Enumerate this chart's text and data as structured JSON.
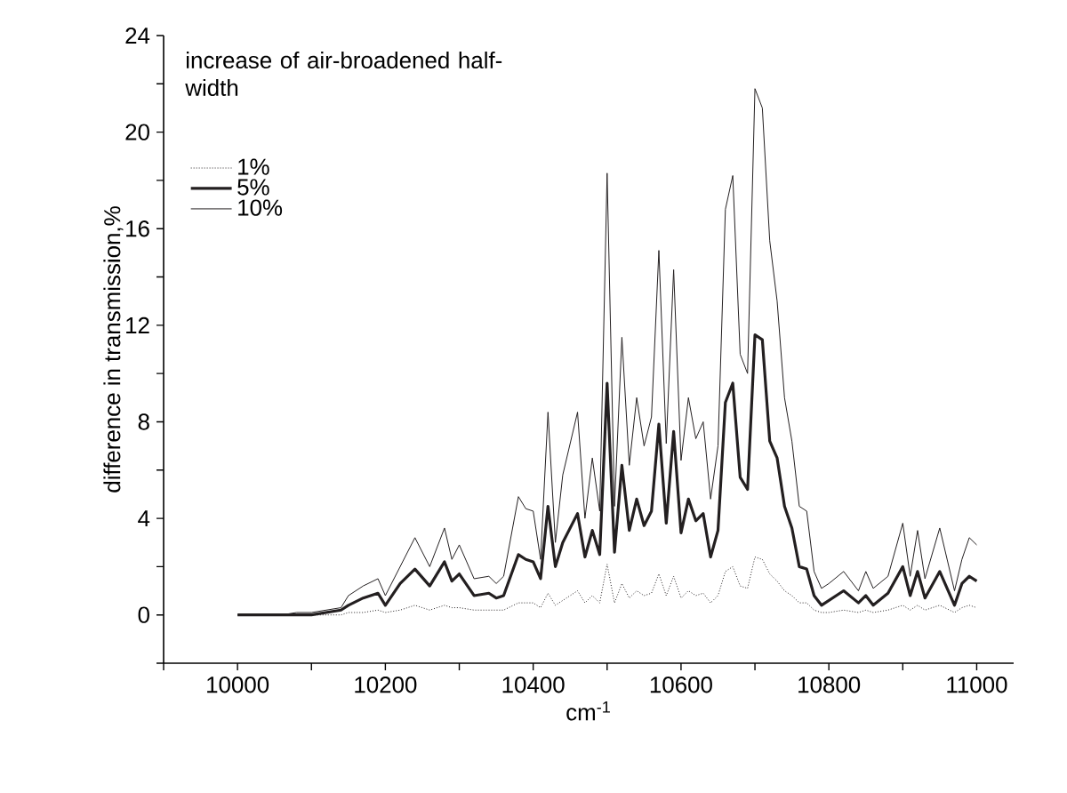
{
  "chart_data": {
    "type": "line",
    "xlabel": "cm$^{-1}$",
    "ylabel": "difference in transmission,%",
    "legend_title": "increase of air-broadened half-width",
    "legend": "top left",
    "grid": false,
    "marker": "none",
    "xlim": [
      9900,
      11050
    ],
    "ylim": [
      -2,
      24
    ],
    "xticks": [
      {
        "value": 9900,
        "label": null
      },
      10000,
      {
        "value": 10100,
        "label": null
      },
      10200,
      {
        "value": 10300,
        "label": null
      },
      10400,
      {
        "value": 10500,
        "label": null
      },
      10600,
      {
        "value": 10700,
        "label": null
      },
      10800,
      {
        "value": 10900,
        "label": null
      },
      11000
    ],
    "yticks": [
      {
        "value": -2,
        "label": null
      },
      0,
      {
        "value": 2,
        "label": null
      },
      4,
      {
        "value": 6,
        "label": null
      },
      8,
      {
        "value": 10,
        "label": null
      },
      12,
      {
        "value": 14,
        "label": null
      },
      16,
      {
        "value": 18,
        "label": null
      },
      20,
      {
        "value": 22,
        "label": null
      },
      24
    ],
    "x": [
      10000,
      10020,
      10040,
      10060,
      10080,
      10100,
      10120,
      10140,
      10150,
      10170,
      10190,
      10200,
      10220,
      10240,
      10260,
      10280,
      10290,
      10300,
      10320,
      10340,
      10350,
      10360,
      10380,
      10390,
      10400,
      10410,
      10420,
      10430,
      10440,
      10460,
      10470,
      10480,
      10490,
      10500,
      10510,
      10520,
      10530,
      10540,
      10550,
      10560,
      10570,
      10580,
      10590,
      10600,
      10610,
      10620,
      10630,
      10640,
      10650,
      10660,
      10670,
      10680,
      10690,
      10700,
      10710,
      10720,
      10730,
      10740,
      10750,
      10760,
      10770,
      10780,
      10790,
      10800,
      10820,
      10840,
      10850,
      10860,
      10880,
      10900,
      10910,
      10920,
      10930,
      10950,
      10970,
      10980,
      10990,
      11000
    ],
    "series": [
      {
        "name": "1%",
        "color": "#231f20",
        "line_style": "dotted",
        "values": [
          0,
          0,
          0,
          0,
          0,
          0,
          0,
          0,
          0.1,
          0.1,
          0.2,
          0.1,
          0.2,
          0.4,
          0.2,
          0.4,
          0.3,
          0.3,
          0.2,
          0.2,
          0.2,
          0.2,
          0.5,
          0.5,
          0.5,
          0.3,
          0.9,
          0.4,
          0.6,
          1.0,
          0.5,
          0.8,
          0.5,
          2.1,
          0.5,
          1.3,
          0.7,
          1.0,
          0.8,
          0.9,
          1.7,
          0.8,
          1.6,
          0.7,
          1.0,
          0.8,
          0.9,
          0.5,
          0.8,
          1.8,
          2.0,
          1.2,
          1.1,
          2.4,
          2.3,
          1.7,
          1.4,
          1.0,
          0.8,
          0.5,
          0.5,
          0.2,
          0.1,
          0.1,
          0.2,
          0.1,
          0.2,
          0.1,
          0.2,
          0.4,
          0.2,
          0.4,
          0.2,
          0.4,
          0.1,
          0.3,
          0.4,
          0.3
        ]
      },
      {
        "name": "5%",
        "color": "#231f20",
        "line_style": "solid",
        "values": [
          0,
          0,
          0,
          0,
          0,
          0,
          0.1,
          0.2,
          0.4,
          0.7,
          0.9,
          0.4,
          1.3,
          1.9,
          1.2,
          2.2,
          1.4,
          1.7,
          0.8,
          0.9,
          0.7,
          0.8,
          2.5,
          2.3,
          2.2,
          1.5,
          4.5,
          2.0,
          3.0,
          4.2,
          2.4,
          3.5,
          2.5,
          9.6,
          2.6,
          6.2,
          3.5,
          4.8,
          3.7,
          4.3,
          7.9,
          3.8,
          7.6,
          3.4,
          4.8,
          3.9,
          4.2,
          2.4,
          3.5,
          8.8,
          9.6,
          5.7,
          5.2,
          11.6,
          11.4,
          7.2,
          6.5,
          4.5,
          3.6,
          2.0,
          1.9,
          0.8,
          0.4,
          0.6,
          1.0,
          0.5,
          0.8,
          0.4,
          0.9,
          2.0,
          0.8,
          1.8,
          0.7,
          1.8,
          0.4,
          1.3,
          1.6,
          1.4
        ]
      },
      {
        "name": "10%",
        "color": "#231f20",
        "line_style": "solid",
        "values": [
          0,
          0,
          0,
          0,
          0.1,
          0.1,
          0.2,
          0.3,
          0.8,
          1.2,
          1.5,
          0.8,
          2.0,
          3.2,
          2.0,
          3.6,
          2.3,
          2.9,
          1.5,
          1.6,
          1.3,
          1.6,
          4.9,
          4.4,
          4.3,
          2.3,
          8.4,
          3.0,
          5.8,
          8.4,
          4.0,
          6.5,
          4.3,
          18.3,
          4.5,
          11.5,
          6.2,
          9.0,
          7.0,
          8.2,
          15.1,
          7.1,
          14.3,
          6.4,
          9.0,
          7.3,
          8.0,
          4.8,
          7.0,
          16.8,
          18.2,
          10.8,
          10.0,
          21.8,
          21.0,
          15.5,
          13.0,
          9.0,
          7.2,
          4.5,
          4.3,
          1.8,
          1.1,
          1.3,
          1.8,
          1.0,
          1.8,
          1.1,
          1.6,
          3.8,
          1.6,
          3.5,
          1.5,
          3.6,
          1.0,
          2.3,
          3.2,
          2.9
        ]
      }
    ]
  }
}
